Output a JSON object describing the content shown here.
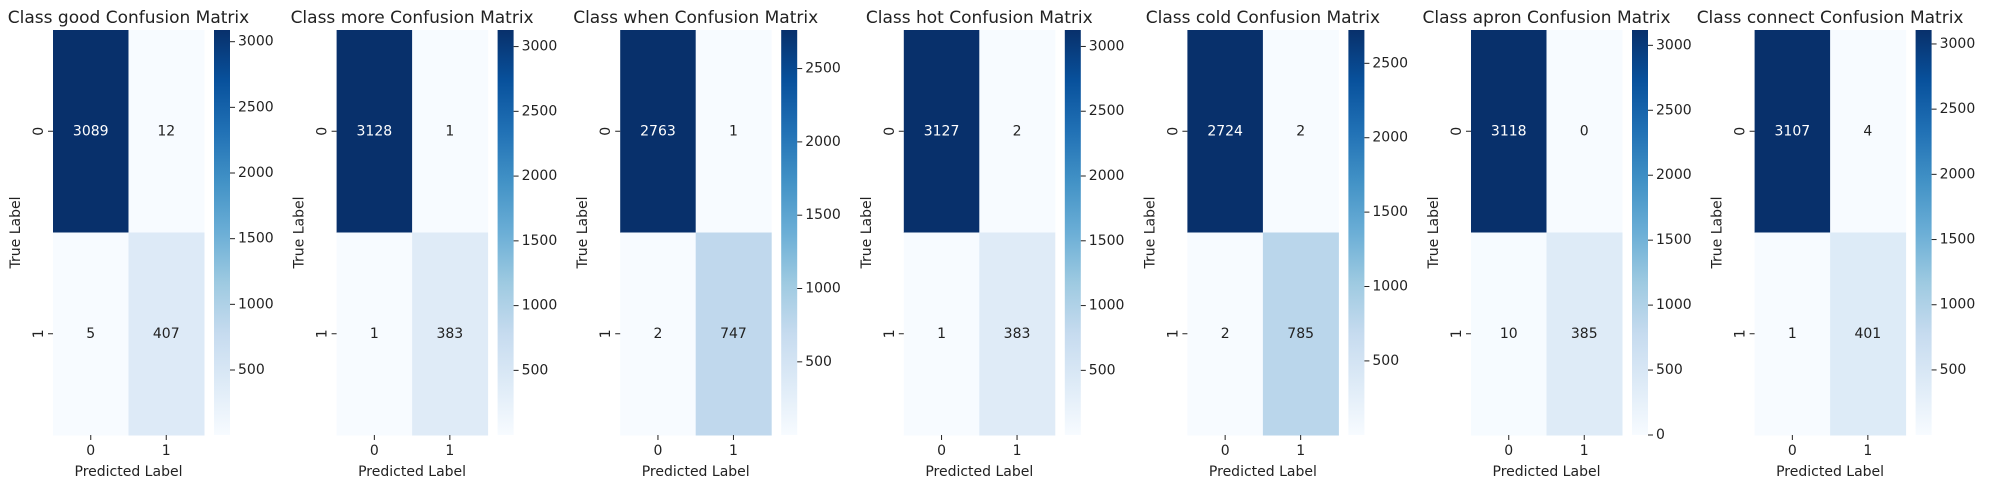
{
  "chart_data": [
    {
      "type": "heatmap",
      "title": "Class good Confusion Matrix",
      "xlabel": "Predicted Label",
      "ylabel": "True Label",
      "x": [
        "0",
        "1"
      ],
      "y": [
        "0",
        "1"
      ],
      "values": [
        [
          3089,
          12
        ],
        [
          5,
          407
        ]
      ],
      "cmap": "Blues",
      "clim": [
        5,
        3089
      ],
      "cticks": [
        500,
        1000,
        1500,
        2000,
        2500,
        3000
      ]
    },
    {
      "type": "heatmap",
      "title": "Class more Confusion Matrix",
      "xlabel": "Predicted Label",
      "ylabel": "True Label",
      "x": [
        "0",
        "1"
      ],
      "y": [
        "0",
        "1"
      ],
      "values": [
        [
          3128,
          1
        ],
        [
          1,
          383
        ]
      ],
      "cmap": "Blues",
      "clim": [
        1,
        3128
      ],
      "cticks": [
        500,
        1000,
        1500,
        2000,
        2500,
        3000
      ]
    },
    {
      "type": "heatmap",
      "title": "Class when Confusion Matrix",
      "xlabel": "Predicted Label",
      "ylabel": "True Label",
      "x": [
        "0",
        "1"
      ],
      "y": [
        "0",
        "1"
      ],
      "values": [
        [
          2763,
          1
        ],
        [
          2,
          747
        ]
      ],
      "cmap": "Blues",
      "clim": [
        1,
        2763
      ],
      "cticks": [
        500,
        1000,
        1500,
        2000,
        2500
      ]
    },
    {
      "type": "heatmap",
      "title": "Class hot Confusion Matrix",
      "xlabel": "Predicted Label",
      "ylabel": "True Label",
      "x": [
        "0",
        "1"
      ],
      "y": [
        "0",
        "1"
      ],
      "values": [
        [
          3127,
          2
        ],
        [
          1,
          383
        ]
      ],
      "cmap": "Blues",
      "clim": [
        1,
        3127
      ],
      "cticks": [
        500,
        1000,
        1500,
        2000,
        2500,
        3000
      ]
    },
    {
      "type": "heatmap",
      "title": "Class cold Confusion Matrix",
      "xlabel": "Predicted Label",
      "ylabel": "True Label",
      "x": [
        "0",
        "1"
      ],
      "y": [
        "0",
        "1"
      ],
      "values": [
        [
          2724,
          2
        ],
        [
          2,
          785
        ]
      ],
      "cmap": "Blues",
      "clim": [
        2,
        2724
      ],
      "cticks": [
        500,
        1000,
        1500,
        2000,
        2500
      ]
    },
    {
      "type": "heatmap",
      "title": "Class apron Confusion Matrix",
      "xlabel": "Predicted Label",
      "ylabel": "True Label",
      "x": [
        "0",
        "1"
      ],
      "y": [
        "0",
        "1"
      ],
      "values": [
        [
          3118,
          0
        ],
        [
          10,
          385
        ]
      ],
      "cmap": "Blues",
      "clim": [
        0,
        3118
      ],
      "cticks": [
        0,
        500,
        1000,
        1500,
        2000,
        2500,
        3000
      ]
    },
    {
      "type": "heatmap",
      "title": "Class connect Confusion Matrix",
      "xlabel": "Predicted Label",
      "ylabel": "True Label",
      "x": [
        "0",
        "1"
      ],
      "y": [
        "0",
        "1"
      ],
      "values": [
        [
          3107,
          4
        ],
        [
          1,
          401
        ]
      ],
      "cmap": "Blues",
      "clim": [
        1,
        3107
      ],
      "cticks": [
        500,
        1000,
        1500,
        2000,
        2500,
        3000
      ]
    }
  ]
}
